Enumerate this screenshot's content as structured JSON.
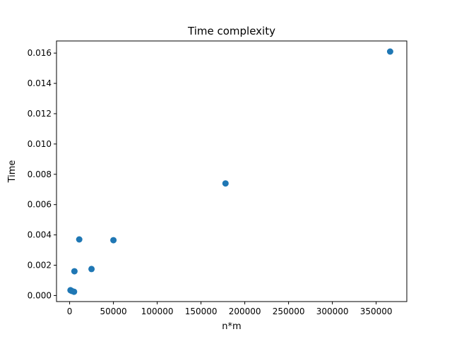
{
  "chart_data": {
    "type": "scatter",
    "title": "Time complexity",
    "xlabel": "n*m",
    "ylabel": "Time",
    "xlim": [
      -15000,
      385000
    ],
    "ylim": [
      -0.0004,
      0.0168
    ],
    "grid": false,
    "marker_color": "#1f77b4",
    "x_ticks": [
      0,
      50000,
      100000,
      150000,
      200000,
      250000,
      300000,
      350000
    ],
    "x_tick_labels": [
      "0",
      "50000",
      "100000",
      "150000",
      "200000",
      "250000",
      "300000",
      "350000"
    ],
    "y_ticks": [
      0,
      0.002,
      0.004,
      0.006,
      0.008,
      0.01,
      0.012,
      0.014,
      0.016
    ],
    "y_tick_labels": [
      "0.000",
      "0.002",
      "0.004",
      "0.006",
      "0.008",
      "0.010",
      "0.012",
      "0.014",
      "0.016"
    ],
    "points": [
      {
        "x": 1000,
        "y": 0.00035
      },
      {
        "x": 2500,
        "y": 0.0003
      },
      {
        "x": 5000,
        "y": 0.00025
      },
      {
        "x": 5500,
        "y": 0.0016
      },
      {
        "x": 11000,
        "y": 0.0037
      },
      {
        "x": 25000,
        "y": 0.00175
      },
      {
        "x": 50000,
        "y": 0.00365
      },
      {
        "x": 178000,
        "y": 0.0074
      },
      {
        "x": 366000,
        "y": 0.0161
      }
    ]
  }
}
